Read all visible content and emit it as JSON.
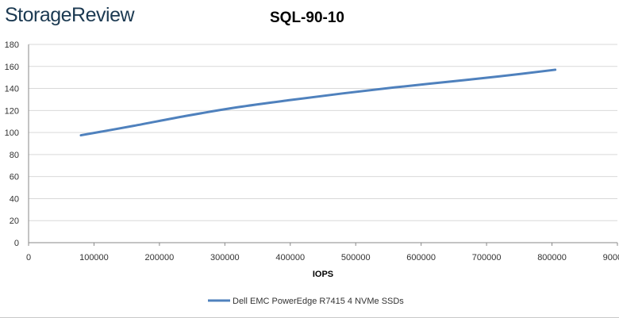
{
  "logo_text": "StorageReview",
  "chart_data": {
    "type": "line",
    "title": "SQL-90-10",
    "xlabel": "IOPS",
    "ylabel": "",
    "xlim": [
      0,
      900000
    ],
    "ylim": [
      0,
      180
    ],
    "x_ticks": [
      "0",
      "100000",
      "200000",
      "300000",
      "400000",
      "500000",
      "600000",
      "700000",
      "800000",
      "900000"
    ],
    "y_ticks": [
      "0",
      "20",
      "40",
      "60",
      "80",
      "100",
      "120",
      "140",
      "160",
      "180"
    ],
    "grid": true,
    "legend_position": "bottom",
    "series": [
      {
        "name": "Dell EMC PowerEdge R7415 4 NVMe SSDs",
        "color": "#4f81bd",
        "x": [
          80000,
          160000,
          240000,
          320000,
          400000,
          480000,
          560000,
          640000,
          720000,
          805000
        ],
        "y": [
          97.5,
          106,
          115,
          123,
          129.5,
          135.5,
          141,
          146,
          151,
          157
        ]
      }
    ]
  }
}
